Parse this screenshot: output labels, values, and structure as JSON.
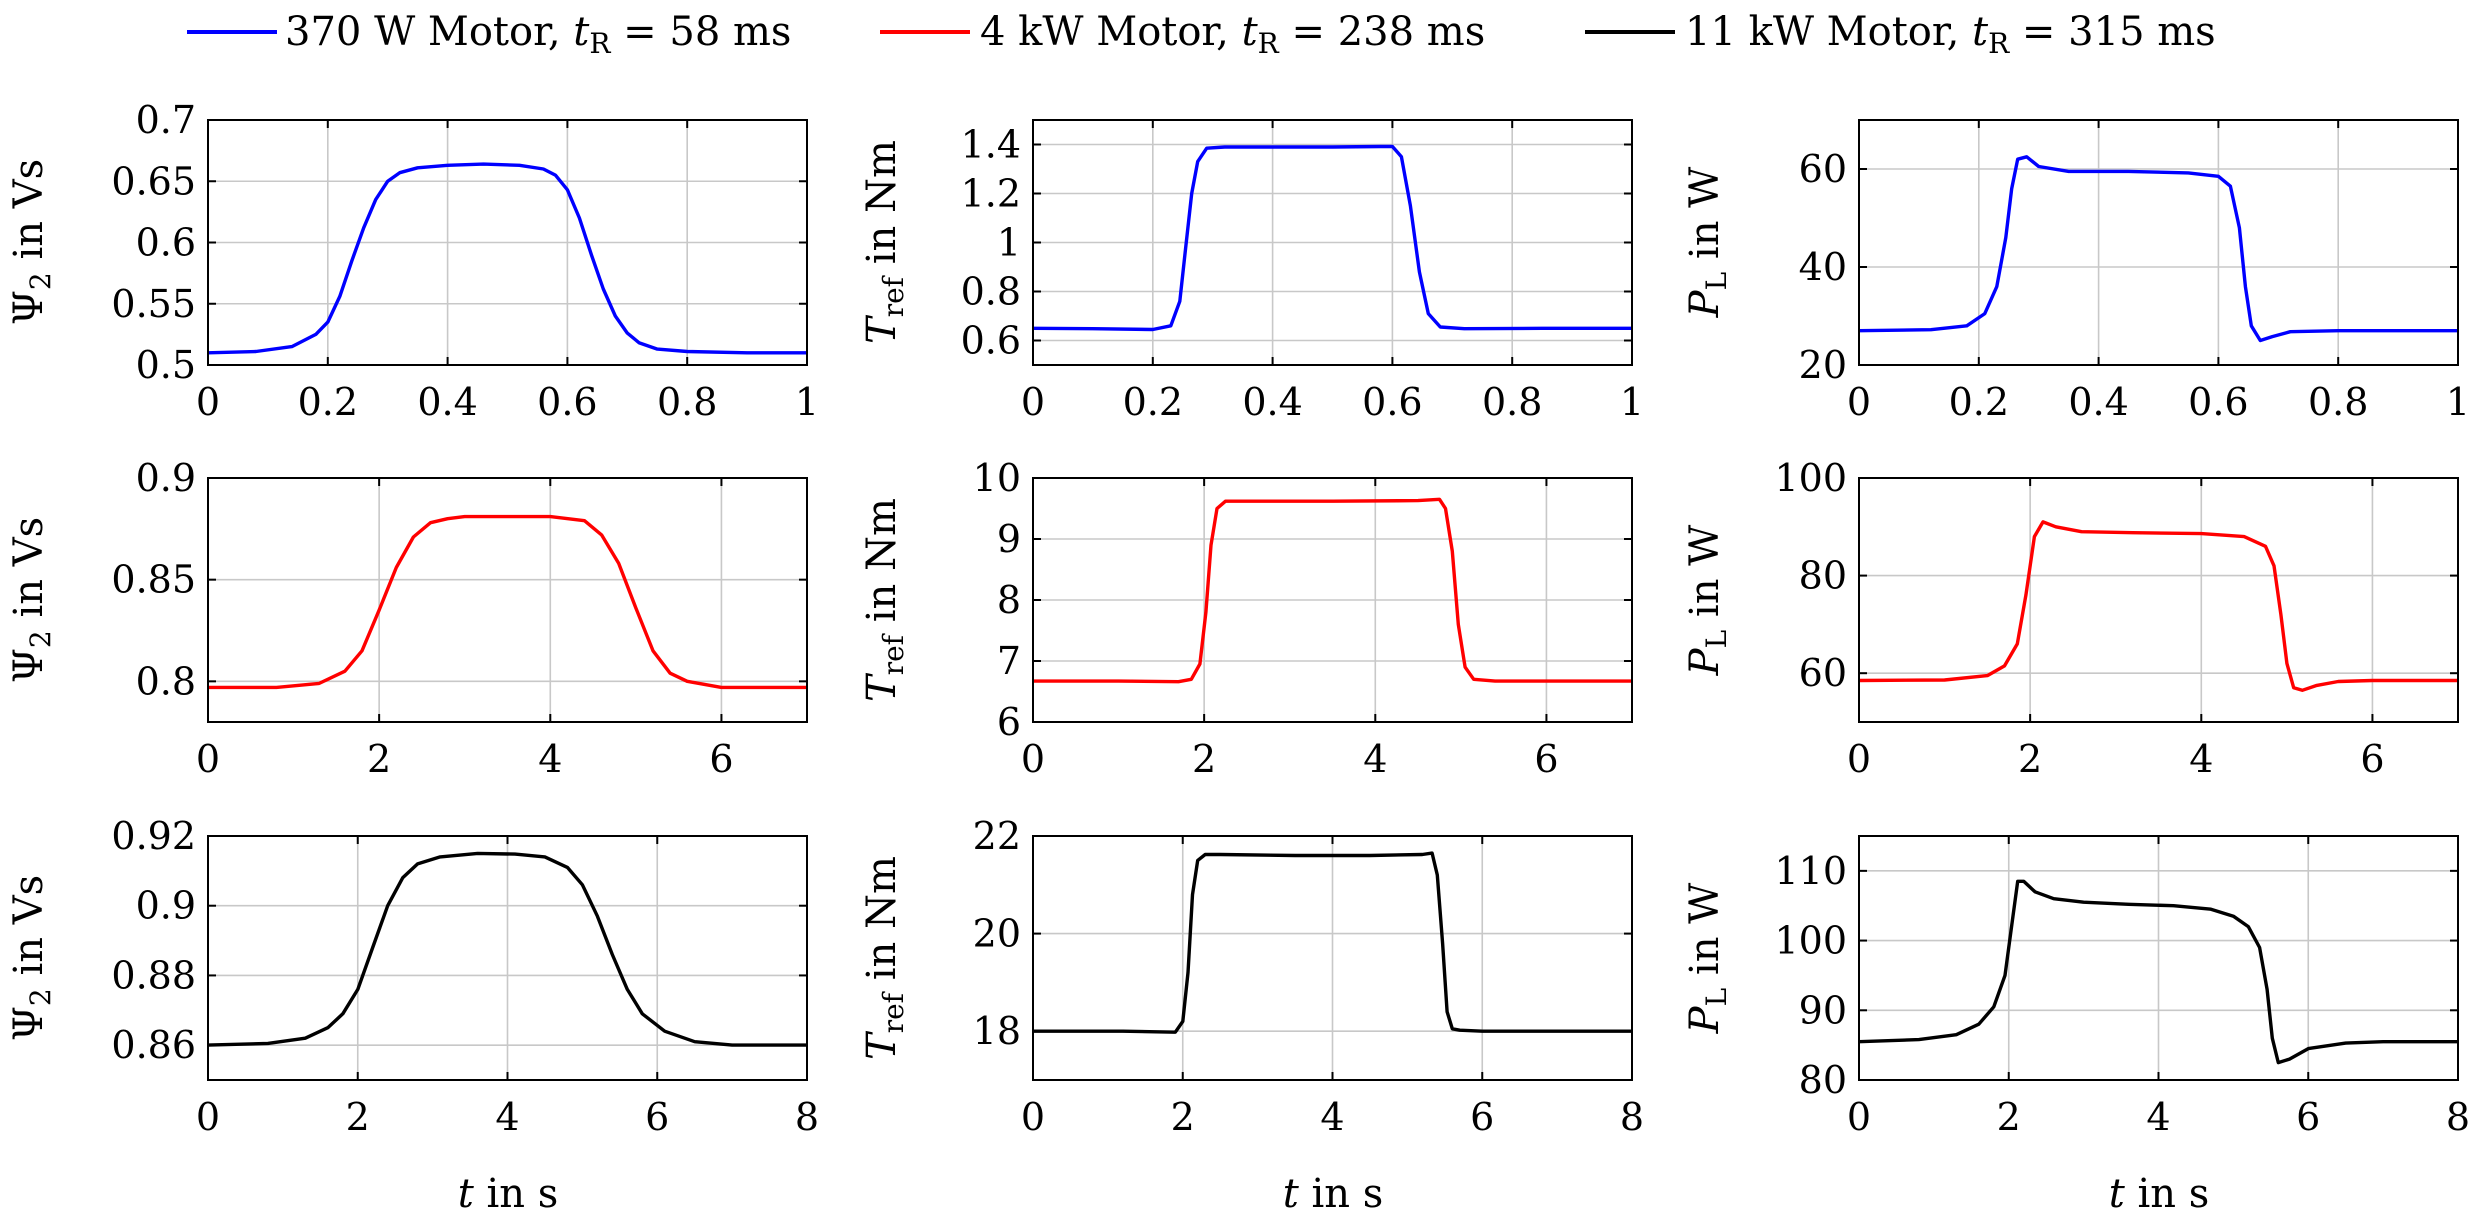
{
  "legend": [
    {
      "name": "370 W Motor",
      "tr_label": "t",
      "tr_sub": "R",
      "tr_value": " = 58 ms",
      "color": "#0000ff"
    },
    {
      "name": "4 kW Motor",
      "tr_label": "t",
      "tr_sub": "R",
      "tr_value": " = 238 ms",
      "color": "#ff0000"
    },
    {
      "name": "11 kW Motor",
      "tr_label": "t",
      "tr_sub": "R",
      "tr_value": " = 315 ms",
      "color": "#000000"
    }
  ],
  "xlabel": {
    "var": "t",
    "unit": " in s"
  },
  "ylabels": [
    {
      "var": "Ψ",
      "sub": "2",
      "unit": " in Vs"
    },
    {
      "var": "T",
      "sub": "ref",
      "unit": " in Nm"
    },
    {
      "var": "P",
      "sub": "L",
      "unit": " in W"
    }
  ],
  "chart_data": [
    {
      "type": "line",
      "row": 0,
      "col": 0,
      "color": "#0000ff",
      "xlim": [
        0,
        1
      ],
      "ylim": [
        0.5,
        0.7
      ],
      "xticks": [
        "0",
        "0.2",
        "0.4",
        "0.6",
        "0.8",
        "1"
      ],
      "xtick_values": [
        0,
        0.2,
        0.4,
        0.6,
        0.8,
        1
      ],
      "yticks": [
        "0.5",
        "0.55",
        "0.6",
        "0.65",
        "0.7"
      ],
      "ytick_values": [
        0.5,
        0.55,
        0.6,
        0.65,
        0.7
      ],
      "x": [
        0,
        0.08,
        0.14,
        0.18,
        0.2,
        0.22,
        0.24,
        0.26,
        0.28,
        0.3,
        0.32,
        0.35,
        0.4,
        0.46,
        0.52,
        0.56,
        0.58,
        0.6,
        0.62,
        0.64,
        0.66,
        0.68,
        0.7,
        0.72,
        0.75,
        0.8,
        0.9,
        1.0
      ],
      "y": [
        0.51,
        0.511,
        0.515,
        0.525,
        0.535,
        0.556,
        0.585,
        0.612,
        0.635,
        0.65,
        0.657,
        0.661,
        0.663,
        0.664,
        0.663,
        0.66,
        0.655,
        0.643,
        0.62,
        0.59,
        0.562,
        0.54,
        0.526,
        0.518,
        0.513,
        0.511,
        0.51,
        0.51
      ]
    },
    {
      "type": "line",
      "row": 0,
      "col": 1,
      "color": "#0000ff",
      "xlim": [
        0,
        1
      ],
      "ylim": [
        0.5,
        1.5
      ],
      "xticks": [
        "0",
        "0.2",
        "0.4",
        "0.6",
        "0.8",
        "1"
      ],
      "xtick_values": [
        0,
        0.2,
        0.4,
        0.6,
        0.8,
        1
      ],
      "yticks": [
        "0.6",
        "0.8",
        "1",
        "1.2",
        "1.4"
      ],
      "ytick_values": [
        0.6,
        0.8,
        1,
        1.2,
        1.4
      ],
      "x": [
        0,
        0.1,
        0.2,
        0.23,
        0.245,
        0.255,
        0.265,
        0.275,
        0.29,
        0.32,
        0.4,
        0.5,
        0.58,
        0.6,
        0.615,
        0.63,
        0.645,
        0.66,
        0.68,
        0.72,
        0.85,
        1.0
      ],
      "y": [
        0.65,
        0.648,
        0.645,
        0.66,
        0.76,
        0.98,
        1.2,
        1.33,
        1.385,
        1.39,
        1.39,
        1.39,
        1.392,
        1.392,
        1.35,
        1.15,
        0.88,
        0.71,
        0.655,
        0.648,
        0.65,
        0.65
      ]
    },
    {
      "type": "line",
      "row": 0,
      "col": 2,
      "color": "#0000ff",
      "xlim": [
        0,
        1
      ],
      "ylim": [
        20,
        70
      ],
      "xticks": [
        "0",
        "0.2",
        "0.4",
        "0.6",
        "0.8",
        "1"
      ],
      "xtick_values": [
        0,
        0.2,
        0.4,
        0.6,
        0.8,
        1
      ],
      "yticks": [
        "20",
        "40",
        "60"
      ],
      "ytick_values": [
        20,
        40,
        60
      ],
      "x": [
        0,
        0.12,
        0.18,
        0.21,
        0.23,
        0.245,
        0.255,
        0.265,
        0.28,
        0.3,
        0.35,
        0.45,
        0.55,
        0.6,
        0.62,
        0.635,
        0.645,
        0.655,
        0.67,
        0.69,
        0.72,
        0.8,
        1.0
      ],
      "y": [
        27,
        27.2,
        28,
        30.5,
        36,
        46,
        56,
        62,
        62.5,
        60.5,
        59.5,
        59.5,
        59.2,
        58.5,
        56.5,
        48,
        36,
        28,
        25,
        25.8,
        26.8,
        27,
        27
      ]
    },
    {
      "type": "line",
      "row": 1,
      "col": 0,
      "color": "#ff0000",
      "xlim": [
        0,
        7
      ],
      "ylim": [
        0.78,
        0.9
      ],
      "xticks": [
        "0",
        "2",
        "4",
        "6"
      ],
      "xtick_values": [
        0,
        2,
        4,
        6
      ],
      "yticks": [
        "0.8",
        "0.85",
        "0.9"
      ],
      "ytick_values": [
        0.8,
        0.85,
        0.9
      ],
      "x": [
        0,
        0.8,
        1.3,
        1.6,
        1.8,
        2.0,
        2.2,
        2.4,
        2.6,
        2.8,
        3.0,
        3.4,
        4.0,
        4.4,
        4.6,
        4.8,
        5.0,
        5.2,
        5.4,
        5.6,
        6.0,
        7.0
      ],
      "y": [
        0.797,
        0.797,
        0.799,
        0.805,
        0.815,
        0.835,
        0.856,
        0.871,
        0.878,
        0.88,
        0.881,
        0.881,
        0.881,
        0.879,
        0.872,
        0.858,
        0.836,
        0.815,
        0.804,
        0.8,
        0.797,
        0.797
      ]
    },
    {
      "type": "line",
      "row": 1,
      "col": 1,
      "color": "#ff0000",
      "xlim": [
        0,
        7
      ],
      "ylim": [
        6,
        10
      ],
      "xticks": [
        "0",
        "2",
        "4",
        "6"
      ],
      "xtick_values": [
        0,
        2,
        4,
        6
      ],
      "yticks": [
        "6",
        "7",
        "8",
        "9",
        "10"
      ],
      "ytick_values": [
        6,
        7,
        8,
        9,
        10
      ],
      "x": [
        0,
        1.0,
        1.7,
        1.85,
        1.95,
        2.02,
        2.08,
        2.15,
        2.25,
        2.5,
        3.5,
        4.5,
        4.75,
        4.82,
        4.9,
        4.97,
        5.05,
        5.15,
        5.4,
        6.0,
        7.0
      ],
      "y": [
        6.67,
        6.67,
        6.66,
        6.7,
        6.95,
        7.8,
        8.9,
        9.5,
        9.62,
        9.62,
        9.62,
        9.63,
        9.65,
        9.5,
        8.8,
        7.6,
        6.9,
        6.7,
        6.67,
        6.67,
        6.67
      ]
    },
    {
      "type": "line",
      "row": 1,
      "col": 2,
      "color": "#ff0000",
      "xlim": [
        0,
        7
      ],
      "ylim": [
        50,
        100
      ],
      "xticks": [
        "0",
        "2",
        "4",
        "6"
      ],
      "xtick_values": [
        0,
        2,
        4,
        6
      ],
      "yticks": [
        "60",
        "80",
        "100"
      ],
      "ytick_values": [
        60,
        80,
        100
      ],
      "x": [
        0,
        1.0,
        1.5,
        1.7,
        1.85,
        1.95,
        2.05,
        2.15,
        2.3,
        2.6,
        3.2,
        4.0,
        4.5,
        4.75,
        4.85,
        4.93,
        5.0,
        5.08,
        5.18,
        5.35,
        5.6,
        6.0,
        7.0
      ],
      "y": [
        58.5,
        58.6,
        59.5,
        61.5,
        66,
        76,
        88,
        91,
        90,
        89,
        88.8,
        88.6,
        88,
        86,
        82,
        72,
        62,
        57,
        56.5,
        57.5,
        58.3,
        58.5,
        58.5
      ]
    },
    {
      "type": "line",
      "row": 2,
      "col": 0,
      "color": "#000000",
      "xlim": [
        0,
        8
      ],
      "ylim": [
        0.85,
        0.92
      ],
      "xticks": [
        "0",
        "2",
        "4",
        "6",
        "8"
      ],
      "xtick_values": [
        0,
        2,
        4,
        6,
        8
      ],
      "yticks": [
        "0.86",
        "0.88",
        "0.9",
        "0.92"
      ],
      "ytick_values": [
        0.86,
        0.88,
        0.9,
        0.92
      ],
      "x": [
        0,
        0.8,
        1.3,
        1.6,
        1.8,
        2.0,
        2.2,
        2.4,
        2.6,
        2.8,
        3.1,
        3.6,
        4.1,
        4.5,
        4.8,
        5.0,
        5.2,
        5.4,
        5.6,
        5.8,
        6.1,
        6.5,
        7.0,
        8.0
      ],
      "y": [
        0.86,
        0.8605,
        0.862,
        0.865,
        0.869,
        0.876,
        0.888,
        0.9,
        0.908,
        0.912,
        0.914,
        0.915,
        0.9148,
        0.914,
        0.911,
        0.906,
        0.897,
        0.886,
        0.876,
        0.869,
        0.864,
        0.861,
        0.86,
        0.86
      ]
    },
    {
      "type": "line",
      "row": 2,
      "col": 1,
      "color": "#000000",
      "xlim": [
        0,
        8
      ],
      "ylim": [
        17,
        22
      ],
      "xticks": [
        "0",
        "2",
        "4",
        "6",
        "8"
      ],
      "xtick_values": [
        0,
        2,
        4,
        6,
        8
      ],
      "yticks": [
        "18",
        "20",
        "22"
      ],
      "ytick_values": [
        18,
        20,
        22
      ],
      "x": [
        0,
        1.2,
        1.9,
        2.0,
        2.07,
        2.13,
        2.2,
        2.3,
        2.5,
        3.5,
        4.5,
        5.2,
        5.33,
        5.4,
        5.47,
        5.53,
        5.6,
        5.7,
        6.0,
        7.0,
        8.0
      ],
      "y": [
        18.0,
        18.0,
        17.98,
        18.2,
        19.2,
        20.8,
        21.5,
        21.62,
        21.62,
        21.6,
        21.6,
        21.62,
        21.65,
        21.2,
        19.8,
        18.4,
        18.05,
        18.02,
        18.0,
        18.0,
        18.0
      ]
    },
    {
      "type": "line",
      "row": 2,
      "col": 2,
      "color": "#000000",
      "xlim": [
        0,
        8
      ],
      "ylim": [
        80,
        115
      ],
      "xticks": [
        "0",
        "2",
        "4",
        "6",
        "8"
      ],
      "xtick_values": [
        0,
        2,
        4,
        6,
        8
      ],
      "yticks": [
        "80",
        "90",
        "100",
        "110"
      ],
      "ytick_values": [
        80,
        90,
        100,
        110
      ],
      "x": [
        0,
        0.8,
        1.3,
        1.6,
        1.8,
        1.95,
        2.05,
        2.12,
        2.2,
        2.35,
        2.6,
        3.0,
        3.6,
        4.2,
        4.7,
        5.0,
        5.2,
        5.35,
        5.45,
        5.52,
        5.6,
        5.75,
        6.0,
        6.5,
        7.0,
        8.0
      ],
      "y": [
        85.5,
        85.8,
        86.5,
        88,
        90.5,
        95,
        103,
        108.5,
        108.5,
        107,
        106,
        105.5,
        105.2,
        105,
        104.5,
        103.5,
        102,
        99,
        93,
        86,
        82.5,
        83,
        84.5,
        85.3,
        85.5,
        85.5
      ]
    }
  ]
}
